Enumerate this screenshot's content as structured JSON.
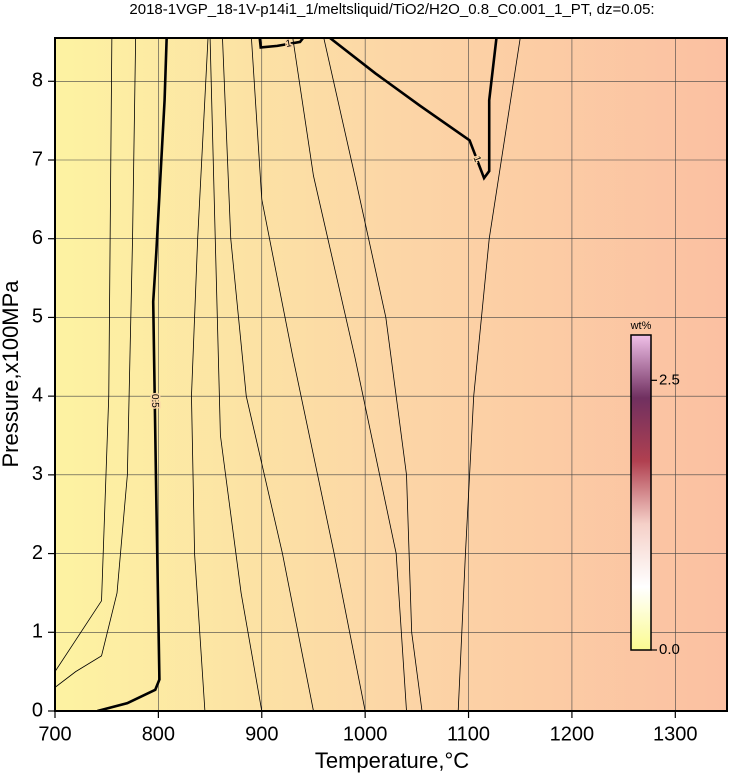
{
  "chart_data": {
    "type": "contour",
    "title": "2018-1VGP_18-1V-p14i1_1/meltsliquid/TiO2/H2O_0.8_C0.001_1_PT, dz=0.05:",
    "xlabel": "Temperature,°C",
    "ylabel": "Pressure,x100MPa",
    "xlim": [
      700,
      1350
    ],
    "ylim": [
      0,
      8.55
    ],
    "xticks": [
      700,
      800,
      900,
      1000,
      1100,
      1200,
      1300
    ],
    "yticks": [
      0,
      1,
      2,
      3,
      4,
      5,
      6,
      7,
      8
    ],
    "grid": true,
    "background_colors": [
      "#fdf3a2",
      "#fcd6a6",
      "#fbc0a2"
    ],
    "contours": [
      {
        "level": 0.5,
        "x": [
          741,
          770,
          797,
          801,
          798,
          795,
          798,
          806,
          808
        ],
        "y": [
          0,
          0.1,
          0.27,
          0.4,
          2.68,
          5.2,
          5.83,
          7.76,
          8.55
        ]
      },
      {
        "level": 1,
        "x": [
          966,
          1010,
          1053,
          1101,
          1115,
          1120,
          1120,
          1127
        ],
        "y": [
          8.55,
          8.1,
          7.69,
          7.25,
          6.77,
          6.86,
          7.76,
          8.55
        ]
      },
      {
        "level": 1,
        "x": [
          898,
          899,
          915,
          937,
          940
        ],
        "y": [
          8.55,
          8.43,
          8.45,
          8.5,
          8.55
        ]
      },
      {
        "x": [
          700,
          720,
          745,
          752,
          755
        ],
        "y": [
          0.5,
          0.9,
          1.4,
          4,
          8.55
        ]
      },
      {
        "x": [
          700,
          720,
          745,
          760,
          770,
          775,
          778
        ],
        "y": [
          0.3,
          0.5,
          0.7,
          1.5,
          3,
          6,
          8.55
        ]
      },
      {
        "x": [
          845,
          835,
          832,
          838,
          848
        ],
        "y": [
          0,
          2,
          4,
          6,
          8.55
        ]
      },
      {
        "x": [
          900,
          880,
          860,
          855,
          850
        ],
        "y": [
          0,
          1.5,
          3.5,
          6,
          8.55
        ]
      },
      {
        "x": [
          950,
          920,
          885,
          870,
          862
        ],
        "y": [
          0,
          2,
          4,
          6,
          8.55
        ]
      },
      {
        "x": [
          1000,
          970,
          930,
          900,
          890
        ],
        "y": [
          0,
          2,
          4.5,
          6.5,
          8.55
        ]
      },
      {
        "x": [
          1040,
          1030,
          990,
          950,
          930
        ],
        "y": [
          0,
          2,
          4.5,
          6.8,
          8.55
        ]
      },
      {
        "x": [
          1055,
          1045,
          1040,
          1020,
          990,
          960
        ],
        "y": [
          0,
          1,
          3,
          5,
          6.8,
          8.55
        ]
      },
      {
        "x": [
          1090,
          1097,
          1105,
          1120,
          1150
        ],
        "y": [
          0,
          2,
          4,
          6,
          8.55
        ]
      }
    ],
    "colorbar": {
      "label": "wt%",
      "lim": [
        0,
        2.92
      ],
      "ticks": [
        {
          "value": 0,
          "label": "0.0"
        },
        {
          "value": 2.5,
          "label": "2.5"
        }
      ],
      "colors": [
        "#fbfb90",
        "#ffffff",
        "#f5d0c8",
        "#b04050",
        "#703060",
        "#f0c0e8"
      ]
    }
  }
}
